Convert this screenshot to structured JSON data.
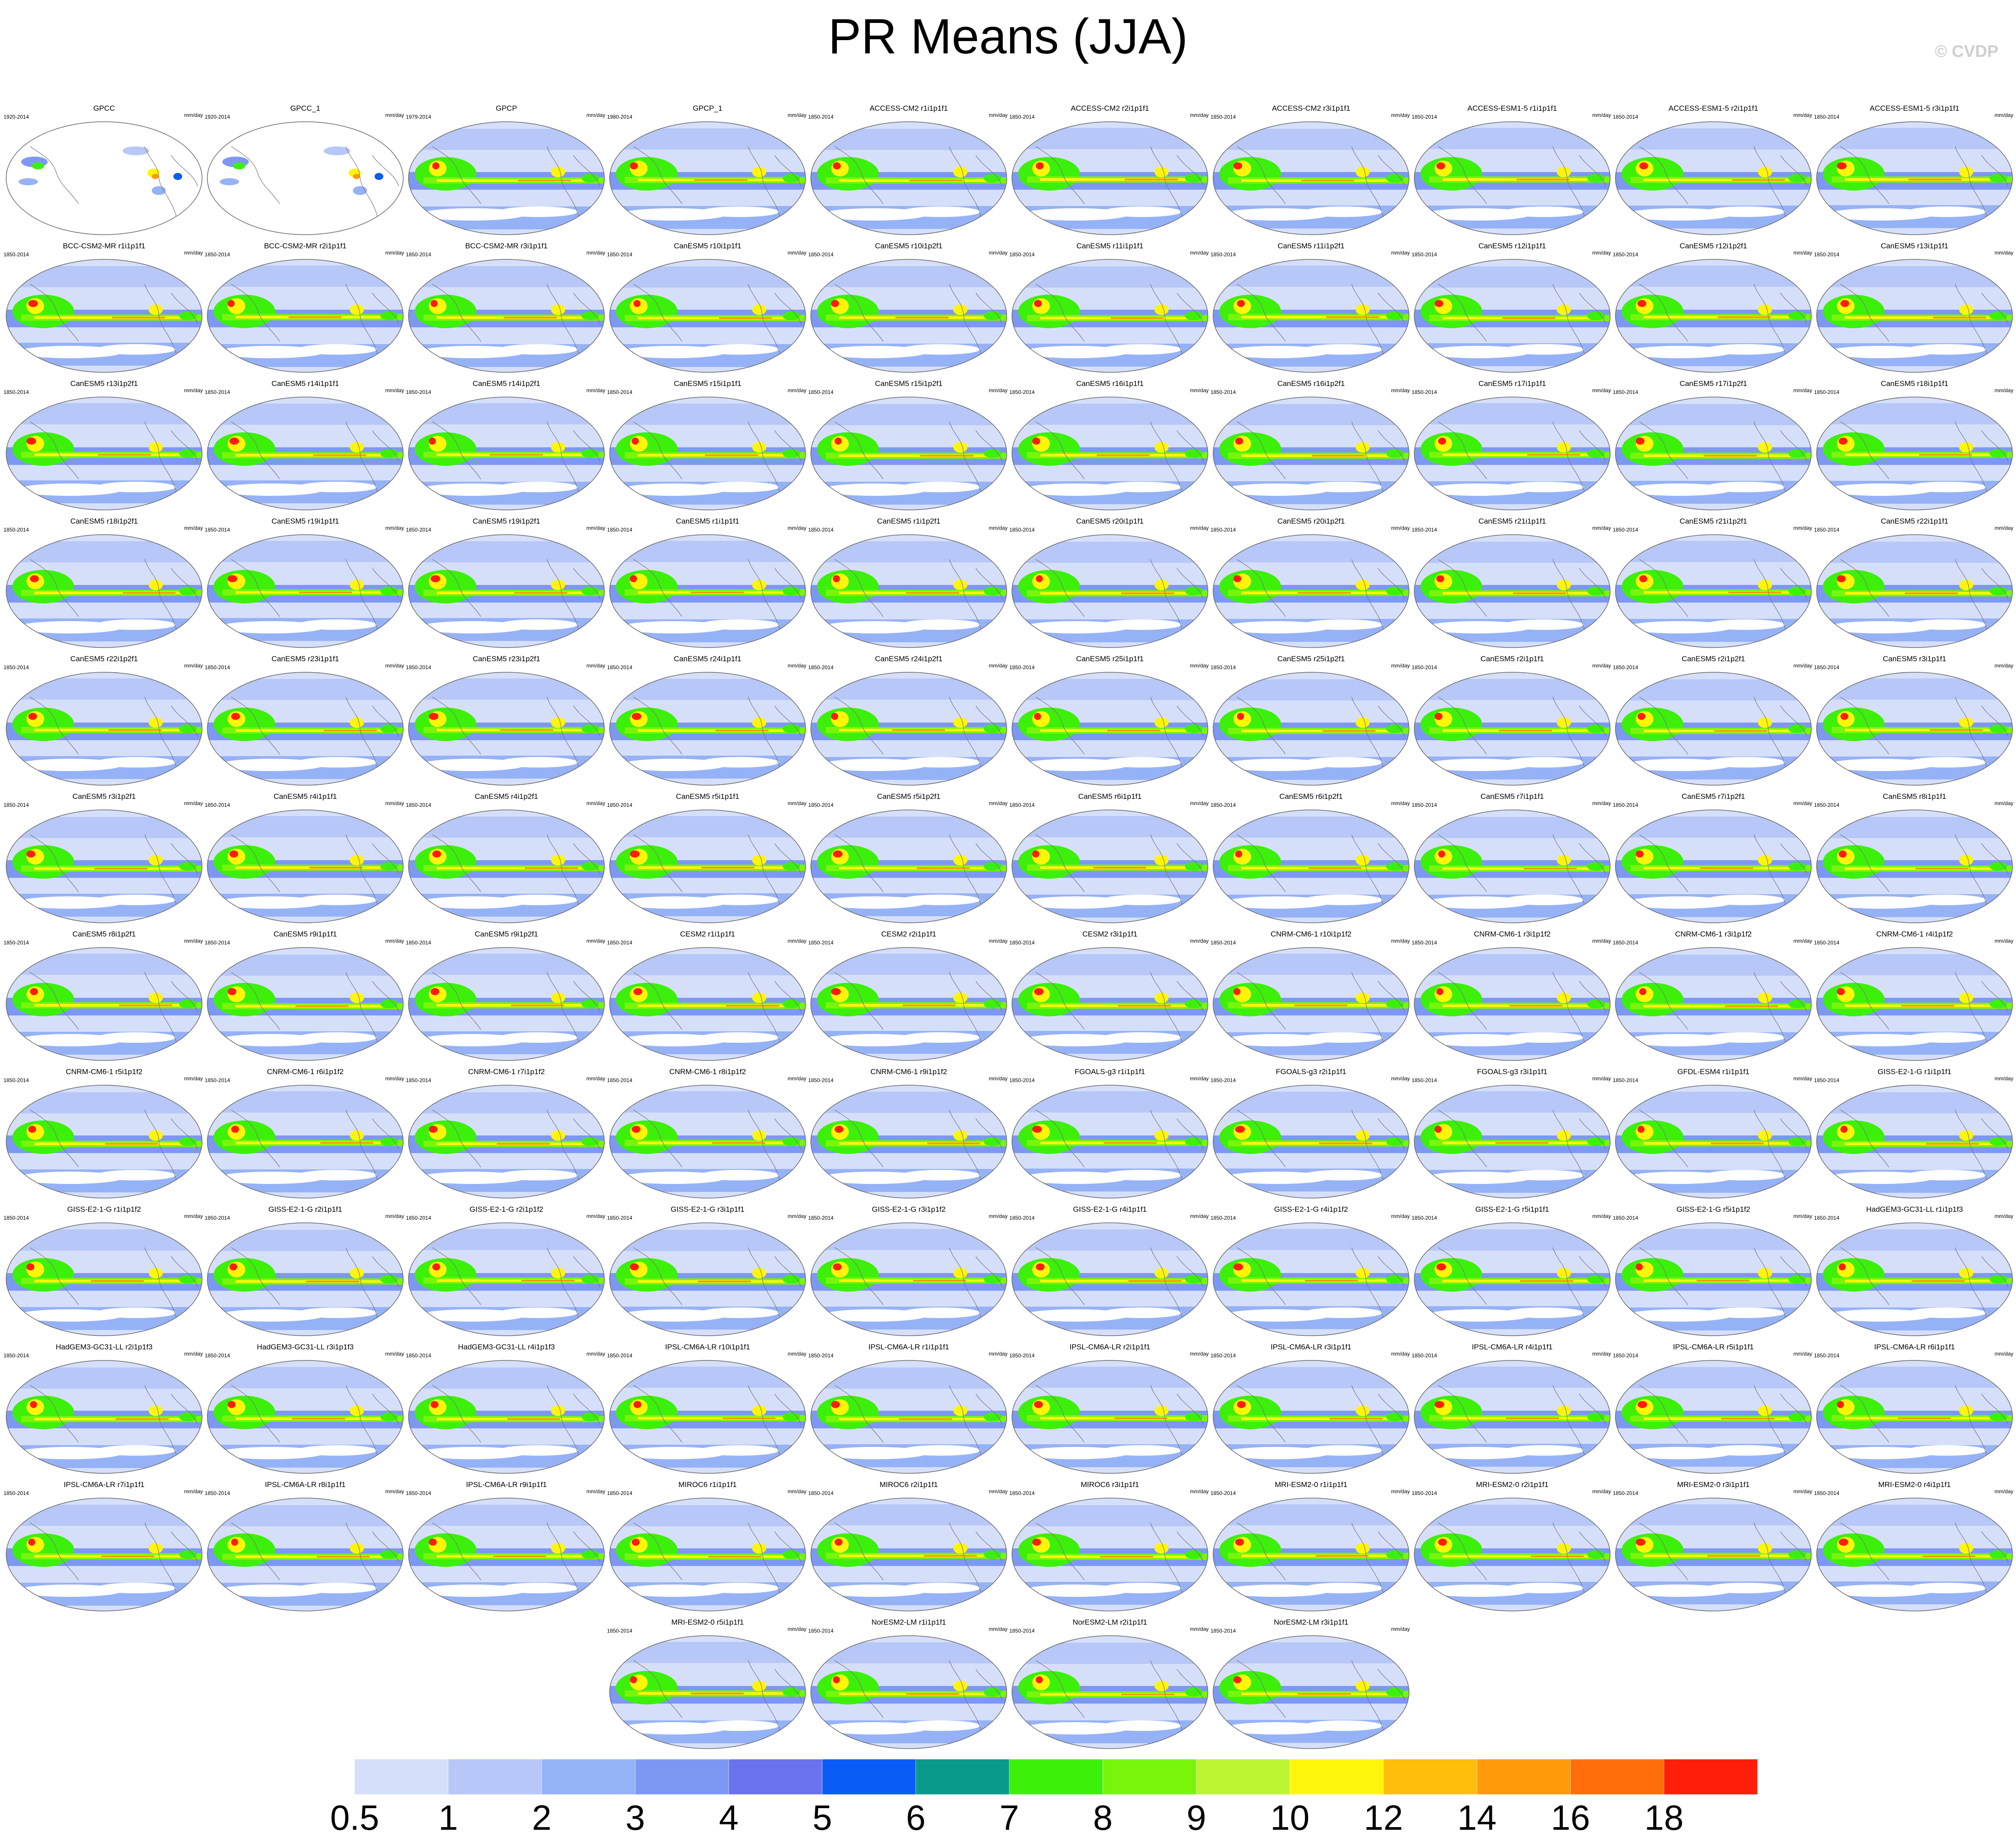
{
  "title": "PR Means (JJA)",
  "credit": "© CVDP",
  "units": "mm/day",
  "panels": [
    {
      "name": "GPCC",
      "years": "1920-2014",
      "obs_sparse": true
    },
    {
      "name": "GPCC_1",
      "years": "1920-2014",
      "obs_sparse": true
    },
    {
      "name": "GPCP",
      "years": "1979-2014"
    },
    {
      "name": "GPCP_1",
      "years": "1980-2014"
    },
    {
      "name": "ACCESS-CM2 r1i1p1f1",
      "years": "1850-2014"
    },
    {
      "name": "ACCESS-CM2 r2i1p1f1",
      "years": "1850-2014"
    },
    {
      "name": "ACCESS-CM2 r3i1p1f1",
      "years": "1850-2014"
    },
    {
      "name": "ACCESS-ESM1-5 r1i1p1f1",
      "years": "1850-2014"
    },
    {
      "name": "ACCESS-ESM1-5 r2i1p1f1",
      "years": "1850-2014"
    },
    {
      "name": "ACCESS-ESM1-5 r3i1p1f1",
      "years": "1850-2014"
    },
    {
      "name": "BCC-CSM2-MR r1i1p1f1",
      "years": "1850-2014"
    },
    {
      "name": "BCC-CSM2-MR r2i1p1f1",
      "years": "1850-2014"
    },
    {
      "name": "BCC-CSM2-MR r3i1p1f1",
      "years": "1850-2014"
    },
    {
      "name": "CanESM5 r10i1p1f1",
      "years": "1850-2014"
    },
    {
      "name": "CanESM5 r10i1p2f1",
      "years": "1850-2014"
    },
    {
      "name": "CanESM5 r11i1p1f1",
      "years": "1850-2014"
    },
    {
      "name": "CanESM5 r11i1p2f1",
      "years": "1850-2014"
    },
    {
      "name": "CanESM5 r12i1p1f1",
      "years": "1850-2014"
    },
    {
      "name": "CanESM5 r12i1p2f1",
      "years": "1850-2014"
    },
    {
      "name": "CanESM5 r13i1p1f1",
      "years": "1850-2014"
    },
    {
      "name": "CanESM5 r13i1p2f1",
      "years": "1850-2014"
    },
    {
      "name": "CanESM5 r14i1p1f1",
      "years": "1850-2014"
    },
    {
      "name": "CanESM5 r14i1p2f1",
      "years": "1850-2014"
    },
    {
      "name": "CanESM5 r15i1p1f1",
      "years": "1850-2014"
    },
    {
      "name": "CanESM5 r15i1p2f1",
      "years": "1850-2014"
    },
    {
      "name": "CanESM5 r16i1p1f1",
      "years": "1850-2014"
    },
    {
      "name": "CanESM5 r16i1p2f1",
      "years": "1850-2014"
    },
    {
      "name": "CanESM5 r17i1p1f1",
      "years": "1850-2014"
    },
    {
      "name": "CanESM5 r17i1p2f1",
      "years": "1850-2014"
    },
    {
      "name": "CanESM5 r18i1p1f1",
      "years": "1850-2014"
    },
    {
      "name": "CanESM5 r18i1p2f1",
      "years": "1850-2014"
    },
    {
      "name": "CanESM5 r19i1p1f1",
      "years": "1850-2014"
    },
    {
      "name": "CanESM5 r19i1p2f1",
      "years": "1850-2014"
    },
    {
      "name": "CanESM5 r1i1p1f1",
      "years": "1850-2014"
    },
    {
      "name": "CanESM5 r1i1p2f1",
      "years": "1850-2014"
    },
    {
      "name": "CanESM5 r20i1p1f1",
      "years": "1850-2014"
    },
    {
      "name": "CanESM5 r20i1p2f1",
      "years": "1850-2014"
    },
    {
      "name": "CanESM5 r21i1p1f1",
      "years": "1850-2014"
    },
    {
      "name": "CanESM5 r21i1p2f1",
      "years": "1850-2014"
    },
    {
      "name": "CanESM5 r22i1p1f1",
      "years": "1850-2014"
    },
    {
      "name": "CanESM5 r22i1p2f1",
      "years": "1850-2014"
    },
    {
      "name": "CanESM5 r23i1p1f1",
      "years": "1850-2014"
    },
    {
      "name": "CanESM5 r23i1p2f1",
      "years": "1850-2014"
    },
    {
      "name": "CanESM5 r24i1p1f1",
      "years": "1850-2014"
    },
    {
      "name": "CanESM5 r24i1p2f1",
      "years": "1850-2014"
    },
    {
      "name": "CanESM5 r25i1p1f1",
      "years": "1850-2014"
    },
    {
      "name": "CanESM5 r25i1p2f1",
      "years": "1850-2014"
    },
    {
      "name": "CanESM5 r2i1p1f1",
      "years": "1850-2014"
    },
    {
      "name": "CanESM5 r2i1p2f1",
      "years": "1850-2014"
    },
    {
      "name": "CanESM5 r3i1p1f1",
      "years": "1850-2014"
    },
    {
      "name": "CanESM5 r3i1p2f1",
      "years": "1850-2014"
    },
    {
      "name": "CanESM5 r4i1p1f1",
      "years": "1850-2014"
    },
    {
      "name": "CanESM5 r4i1p2f1",
      "years": "1850-2014"
    },
    {
      "name": "CanESM5 r5i1p1f1",
      "years": "1850-2014"
    },
    {
      "name": "CanESM5 r5i1p2f1",
      "years": "1850-2014"
    },
    {
      "name": "CanESM5 r6i1p1f1",
      "years": "1850-2014"
    },
    {
      "name": "CanESM5 r6i1p2f1",
      "years": "1850-2014"
    },
    {
      "name": "CanESM5 r7i1p1f1",
      "years": "1850-2014"
    },
    {
      "name": "CanESM5 r7i1p2f1",
      "years": "1850-2014"
    },
    {
      "name": "CanESM5 r8i1p1f1",
      "years": "1850-2014"
    },
    {
      "name": "CanESM5 r8i1p2f1",
      "years": "1850-2014"
    },
    {
      "name": "CanESM5 r9i1p1f1",
      "years": "1850-2014"
    },
    {
      "name": "CanESM5 r9i1p2f1",
      "years": "1850-2014"
    },
    {
      "name": "CESM2 r1i1p1f1",
      "years": "1850-2014"
    },
    {
      "name": "CESM2 r2i1p1f1",
      "years": "1850-2014"
    },
    {
      "name": "CESM2 r3i1p1f1",
      "years": "1850-2014"
    },
    {
      "name": "CNRM-CM6-1 r10i1p1f2",
      "years": "1850-2014"
    },
    {
      "name": "CNRM-CM6-1 r3i1p1f2",
      "years": "1850-2014"
    },
    {
      "name": "CNRM-CM6-1 r3i1p1f2",
      "years": "1850-2014"
    },
    {
      "name": "CNRM-CM6-1 r4i1p1f2",
      "years": "1850-2014"
    },
    {
      "name": "CNRM-CM6-1 r5i1p1f2",
      "years": "1850-2014"
    },
    {
      "name": "CNRM-CM6-1 r6i1p1f2",
      "years": "1850-2014"
    },
    {
      "name": "CNRM-CM6-1 r7i1p1f2",
      "years": "1850-2014"
    },
    {
      "name": "CNRM-CM6-1 r8i1p1f2",
      "years": "1850-2014"
    },
    {
      "name": "CNRM-CM6-1 r9i1p1f2",
      "years": "1850-2014"
    },
    {
      "name": "FGOALS-g3 r1i1p1f1",
      "years": "1850-2014"
    },
    {
      "name": "FGOALS-g3 r2i1p1f1",
      "years": "1850-2014"
    },
    {
      "name": "FGOALS-g3 r3i1p1f1",
      "years": "1850-2014"
    },
    {
      "name": "GFDL-ESM4 r1i1p1f1",
      "years": "1850-2014"
    },
    {
      "name": "GISS-E2-1-G r1i1p1f1",
      "years": "1850-2014"
    },
    {
      "name": "GISS-E2-1-G r1i1p1f2",
      "years": "1850-2014"
    },
    {
      "name": "GISS-E2-1-G r2i1p1f1",
      "years": "1850-2014"
    },
    {
      "name": "GISS-E2-1-G r2i1p1f2",
      "years": "1850-2014"
    },
    {
      "name": "GISS-E2-1-G r3i1p1f1",
      "years": "1850-2014"
    },
    {
      "name": "GISS-E2-1-G r3i1p1f2",
      "years": "1850-2014"
    },
    {
      "name": "GISS-E2-1-G r4i1p1f1",
      "years": "1850-2014"
    },
    {
      "name": "GISS-E2-1-G r4i1p1f2",
      "years": "1850-2014"
    },
    {
      "name": "GISS-E2-1-G r5i1p1f1",
      "years": "1850-2014"
    },
    {
      "name": "GISS-E2-1-G r5i1p1f2",
      "years": "1850-2014"
    },
    {
      "name": "HadGEM3-GC31-LL r1i1p1f3",
      "years": "1850-2014"
    },
    {
      "name": "HadGEM3-GC31-LL r2i1p1f3",
      "years": "1850-2014"
    },
    {
      "name": "HadGEM3-GC31-LL r3i1p1f3",
      "years": "1850-2014"
    },
    {
      "name": "HadGEM3-GC31-LL r4i1p1f3",
      "years": "1850-2014"
    },
    {
      "name": "IPSL-CM6A-LR r10i1p1f1",
      "years": "1850-2014"
    },
    {
      "name": "IPSL-CM6A-LR r1i1p1f1",
      "years": "1850-2014"
    },
    {
      "name": "IPSL-CM6A-LR r2i1p1f1",
      "years": "1850-2014"
    },
    {
      "name": "IPSL-CM6A-LR r3i1p1f1",
      "years": "1850-2014"
    },
    {
      "name": "IPSL-CM6A-LR r4i1p1f1",
      "years": "1850-2014"
    },
    {
      "name": "IPSL-CM6A-LR r5i1p1f1",
      "years": "1850-2014"
    },
    {
      "name": "IPSL-CM6A-LR r6i1p1f1",
      "years": "1850-2014"
    },
    {
      "name": "IPSL-CM6A-LR r7i1p1f1",
      "years": "1850-2014"
    },
    {
      "name": "IPSL-CM6A-LR r8i1p1f1",
      "years": "1850-2014"
    },
    {
      "name": "IPSL-CM6A-LR r9i1p1f1",
      "years": "1850-2014"
    },
    {
      "name": "MIROC6 r1i1p1f1",
      "years": "1850-2014"
    },
    {
      "name": "MIROC6 r2i1p1f1",
      "years": "1850-2014"
    },
    {
      "name": "MIROC6 r3i1p1f1",
      "years": "1850-2014"
    },
    {
      "name": "MRI-ESM2-0 r1i1p1f1",
      "years": "1850-2014"
    },
    {
      "name": "MRI-ESM2-0 r2i1p1f1",
      "years": "1850-2014"
    },
    {
      "name": "MRI-ESM2-0 r3i1p1f1",
      "years": "1850-2014"
    },
    {
      "name": "MRI-ESM2-0 r4i1p1f1",
      "years": "1850-2014"
    },
    {
      "name": "MRI-ESM2-0 r5i1p1f1",
      "years": "1850-2014"
    },
    {
      "name": "NorESM2-LM r1i1p1f1",
      "years": "1850-2014"
    },
    {
      "name": "NorESM2-LM r2i1p1f1",
      "years": "1850-2014"
    },
    {
      "name": "NorESM2-LM r3i1p1f1",
      "years": "1850-2014"
    }
  ],
  "colorbar": {
    "labels": [
      "0.5",
      "1",
      "2",
      "3",
      "4",
      "5",
      "6",
      "7",
      "8",
      "9",
      "10",
      "12",
      "14",
      "16",
      "18"
    ],
    "colors": [
      "#ffffff",
      "#d6dffa",
      "#b7c7f7",
      "#96b2f7",
      "#7d98f3",
      "#6a72ee",
      "#0a5cf7",
      "#0a9a8c",
      "#3cf00a",
      "#78f50a",
      "#bef532",
      "#fff50a",
      "#ffbe0a",
      "#ff9a0a",
      "#ff6e0a",
      "#ff1e0a"
    ]
  }
}
